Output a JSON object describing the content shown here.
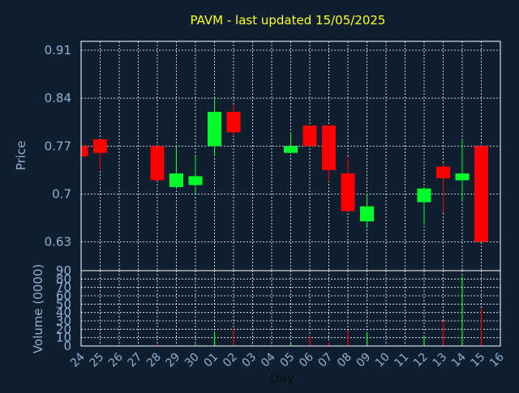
{
  "chart_data": {
    "type": "candlestick",
    "title": "PAVM - last updated 15/05/2025",
    "xlabel": "Day",
    "price_panel": {
      "ylabel": "Price",
      "ylim": [
        0.588,
        0.923
      ],
      "ticks": [
        "0.91",
        "0.84",
        "0.77",
        "0.7",
        "0.63"
      ],
      "tick_values": [
        0.91,
        0.84,
        0.77,
        0.7,
        0.63
      ],
      "grid": true
    },
    "volume_panel": {
      "ylabel": "Volume (0000)",
      "ylim": [
        0,
        90
      ],
      "ticks": [
        "90",
        "80",
        "70",
        "60",
        "50",
        "40",
        "30",
        "20",
        "10",
        "0"
      ],
      "tick_values": [
        90,
        80,
        70,
        60,
        50,
        40,
        30,
        20,
        10,
        0
      ],
      "grid": true
    },
    "days": [
      "24",
      "25",
      "26",
      "27",
      "28",
      "29",
      "30",
      "01",
      "02",
      "03",
      "04",
      "05",
      "06",
      "07",
      "08",
      "09",
      "10",
      "11",
      "12",
      "13",
      "14",
      "15",
      "16"
    ],
    "candles": [
      {
        "day": "24",
        "open": 0.77,
        "high": 0.77,
        "low": 0.755,
        "close": 0.755,
        "volume": 0
      },
      {
        "day": "25",
        "open": 0.78,
        "high": 0.78,
        "low": 0.735,
        "close": 0.76,
        "volume": 1
      },
      {
        "day": "28",
        "open": 0.77,
        "high": 0.77,
        "low": 0.72,
        "close": 0.72,
        "volume": 2
      },
      {
        "day": "29",
        "open": 0.71,
        "high": 0.77,
        "low": 0.71,
        "close": 0.73,
        "volume": 1
      },
      {
        "day": "30",
        "open": 0.713,
        "high": 0.755,
        "low": 0.7,
        "close": 0.726,
        "volume": 2
      },
      {
        "day": "01",
        "open": 0.77,
        "high": 0.84,
        "low": 0.755,
        "close": 0.82,
        "volume": 17
      },
      {
        "day": "02",
        "open": 0.82,
        "high": 0.83,
        "low": 0.785,
        "close": 0.79,
        "volume": 20
      },
      {
        "day": "05",
        "open": 0.76,
        "high": 0.79,
        "low": 0.76,
        "close": 0.77,
        "volume": 3
      },
      {
        "day": "06",
        "open": 0.8,
        "high": 0.8,
        "low": 0.77,
        "close": 0.77,
        "volume": 12
      },
      {
        "day": "07",
        "open": 0.8,
        "high": 0.8,
        "low": 0.718,
        "close": 0.735,
        "volume": 5
      },
      {
        "day": "08",
        "open": 0.73,
        "high": 0.755,
        "low": 0.675,
        "close": 0.675,
        "volume": 18
      },
      {
        "day": "09",
        "open": 0.66,
        "high": 0.7,
        "low": 0.65,
        "close": 0.682,
        "volume": 16
      },
      {
        "day": "12",
        "open": 0.688,
        "high": 0.71,
        "low": 0.655,
        "close": 0.708,
        "volume": 11
      },
      {
        "day": "13",
        "open": 0.74,
        "high": 0.745,
        "low": 0.672,
        "close": 0.723,
        "volume": 30
      },
      {
        "day": "14",
        "open": 0.72,
        "high": 0.78,
        "low": 0.69,
        "close": 0.73,
        "volume": 83
      },
      {
        "day": "15",
        "open": 0.77,
        "high": 0.77,
        "low": 0.63,
        "close": 0.63,
        "volume": 45
      }
    ],
    "colors": {
      "background": "#0f1f30",
      "up": "#00ff2a",
      "down": "#ff0000",
      "text": "#8fb0d0",
      "title": "#ffff22",
      "grid": "#ffffff",
      "frame": "#ffffff"
    }
  }
}
